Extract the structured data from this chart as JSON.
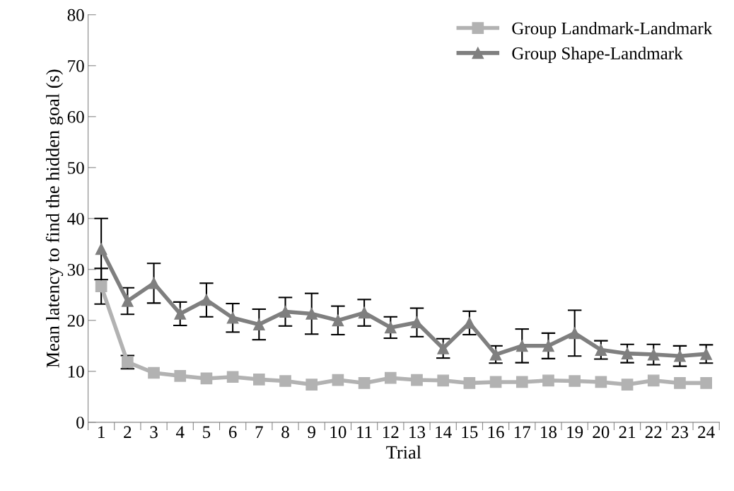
{
  "chart_data": {
    "type": "line",
    "xlabel": "Trial",
    "ylabel": "Mean latency to find the hidden goal (s)",
    "categories": [
      "1",
      "2",
      "3",
      "4",
      "5",
      "6",
      "7",
      "8",
      "9",
      "10",
      "11",
      "12",
      "13",
      "14",
      "15",
      "16",
      "17",
      "18",
      "19",
      "20",
      "21",
      "22",
      "23",
      "24"
    ],
    "ylim": [
      0,
      80
    ],
    "yticks": [
      0,
      10,
      20,
      30,
      40,
      50,
      60,
      70,
      80
    ],
    "grid": false,
    "legend": "top right",
    "line_style": "solid",
    "series": [
      {
        "name": "Group Landmark-Landmark",
        "color": "#b2b2b2",
        "marker": "square",
        "values": [
          26.7,
          11.8,
          9.7,
          9.1,
          8.6,
          8.9,
          8.4,
          8.1,
          7.4,
          8.3,
          7.7,
          8.7,
          8.3,
          8.2,
          7.7,
          7.9,
          7.9,
          8.2,
          8.1,
          7.9,
          7.4,
          8.2,
          7.7,
          7.7
        ],
        "errors": [
          3.5,
          1.3,
          null,
          null,
          null,
          null,
          null,
          null,
          null,
          null,
          null,
          null,
          null,
          null,
          null,
          null,
          null,
          null,
          null,
          null,
          null,
          null,
          null,
          null
        ]
      },
      {
        "name": "Group Shape-Landmark",
        "color": "#7f7f7f",
        "marker": "triangle",
        "values": [
          34,
          23.8,
          27.3,
          21.3,
          24,
          20.5,
          19.2,
          21.7,
          21.3,
          20,
          21.5,
          18.6,
          19.6,
          14.5,
          19.5,
          13.3,
          15,
          15,
          17.5,
          14.2,
          13.5,
          13.3,
          13,
          13.4
        ],
        "errors": [
          6,
          2.6,
          3.9,
          2.3,
          3.3,
          2.8,
          3,
          2.8,
          4,
          2.8,
          2.6,
          2.1,
          2.8,
          1.9,
          2.3,
          1.7,
          3.3,
          2.5,
          4.5,
          1.8,
          1.8,
          2,
          2,
          1.8
        ]
      }
    ]
  }
}
